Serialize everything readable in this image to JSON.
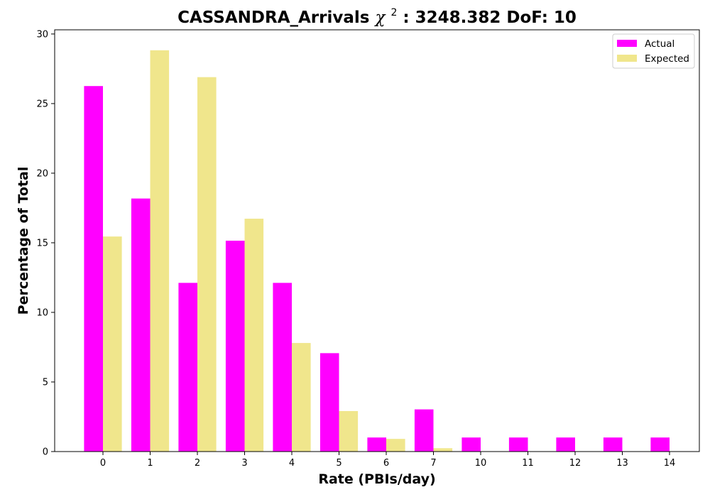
{
  "chart_data": {
    "type": "bar",
    "title": "CASSANDRA_Arrivals",
    "title_stat_symbol": "χ",
    "title_stat_superscript": "2",
    "title_stat_rest": ": 3248.382 DoF: 10",
    "xlabel": "Rate (PBIs/day)",
    "ylabel": "Percentage of Total",
    "categories": [
      "0",
      "1",
      "2",
      "3",
      "4",
      "5",
      "6",
      "7",
      "10",
      "11",
      "12",
      "13",
      "14"
    ],
    "series": [
      {
        "name": "Actual",
        "color": "#ff00ff",
        "values": [
          26.26,
          18.18,
          12.12,
          15.15,
          12.12,
          7.07,
          1.01,
          3.03,
          1.01,
          1.01,
          1.01,
          1.01,
          1.01
        ]
      },
      {
        "name": "Expected",
        "color": "#f0e68c",
        "values": [
          15.45,
          28.83,
          26.9,
          16.73,
          7.8,
          2.91,
          0.91,
          0.24,
          0.02,
          0.01,
          0.0,
          0.0,
          0.0
        ]
      }
    ],
    "ylim": [
      0,
      30.3
    ],
    "yticks": [
      0,
      5,
      10,
      15,
      20,
      25,
      30
    ],
    "grid": false,
    "legend_position": "top-right"
  }
}
